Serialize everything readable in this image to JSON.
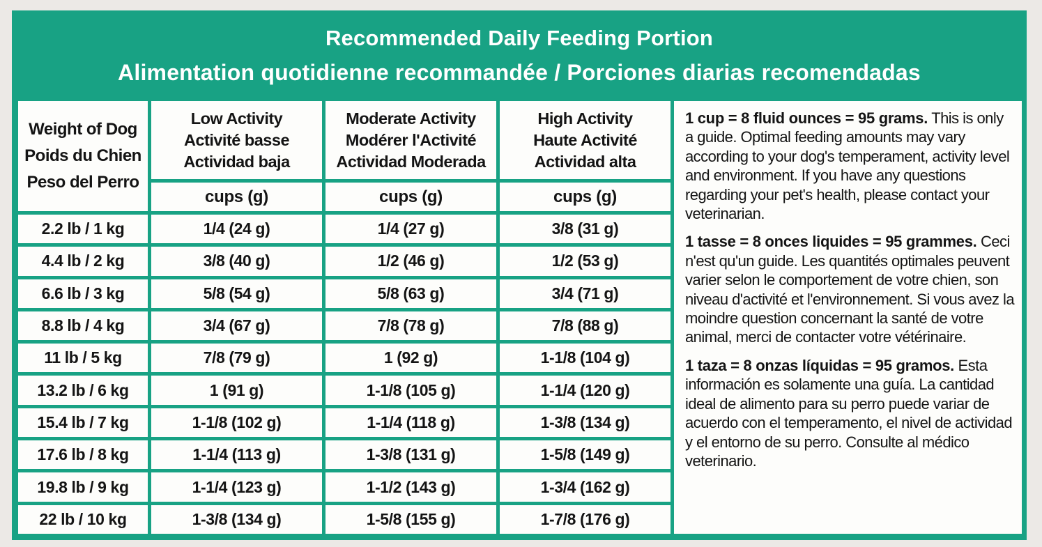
{
  "colors": {
    "teal": "#18a284",
    "cell_bg": "#fdfdfb",
    "page_bg": "#ece9e6",
    "text": "#141414",
    "title_text": "#ffffff"
  },
  "header": {
    "title_en": "Recommended Daily Feeding Portion",
    "title_fr_es": "Alimentation quotidienne recommandée / Porciones diarias recomendadas"
  },
  "chart_data": {
    "type": "table",
    "title": "Recommended Daily Feeding Portion",
    "weight_header": [
      "Weight of Dog",
      "Poids du Chien",
      "Peso del Perro"
    ],
    "activity_columns": [
      {
        "labels": [
          "Low Activity",
          "Activité basse",
          "Actividad baja"
        ],
        "unit": "cups (g)"
      },
      {
        "labels": [
          "Moderate Activity",
          "Modérer l'Activité",
          "Actividad Moderada"
        ],
        "unit": "cups (g)"
      },
      {
        "labels": [
          "High Activity",
          "Haute Activité",
          "Actividad alta"
        ],
        "unit": "cups (g)"
      }
    ],
    "rows": [
      {
        "weight": "2.2 lb / 1 kg",
        "low": "1/4 (24 g)",
        "moderate": "1/4 (27 g)",
        "high": "3/8 (31 g)"
      },
      {
        "weight": "4.4 lb / 2 kg",
        "low": "3/8 (40 g)",
        "moderate": "1/2 (46 g)",
        "high": "1/2 (53 g)"
      },
      {
        "weight": "6.6 lb / 3 kg",
        "low": "5/8 (54 g)",
        "moderate": "5/8 (63 g)",
        "high": "3/4 (71 g)"
      },
      {
        "weight": "8.8 lb / 4 kg",
        "low": "3/4 (67 g)",
        "moderate": "7/8 (78 g)",
        "high": "7/8 (88 g)"
      },
      {
        "weight": "11 lb / 5 kg",
        "low": "7/8 (79 g)",
        "moderate": "1 (92 g)",
        "high": "1-1/8 (104 g)"
      },
      {
        "weight": "13.2 lb / 6 kg",
        "low": "1 (91 g)",
        "moderate": "1-1/8 (105 g)",
        "high": "1-1/4 (120 g)"
      },
      {
        "weight": "15.4 lb / 7 kg",
        "low": "1-1/8 (102 g)",
        "moderate": "1-1/4 (118 g)",
        "high": "1-3/8 (134 g)"
      },
      {
        "weight": "17.6 lb / 8 kg",
        "low": "1-1/4 (113 g)",
        "moderate": "1-3/8 (131 g)",
        "high": "1-5/8 (149 g)"
      },
      {
        "weight": "19.8 lb / 9 kg",
        "low": "1-1/4 (123 g)",
        "moderate": "1-1/2 (143 g)",
        "high": "1-3/4 (162 g)"
      },
      {
        "weight": "22 lb / 10 kg",
        "low": "1-3/8 (134 g)",
        "moderate": "1-5/8 (155 g)",
        "high": "1-7/8 (176 g)"
      }
    ]
  },
  "notes": [
    {
      "lead": "1 cup = 8 fluid ounces = 95 grams.",
      "body": " This is only a guide. Optimal feeding amounts may vary according to your dog's temperament, activity level and environment. If you have any questions regarding your pet's health, please contact your veterinarian."
    },
    {
      "lead": "1 tasse = 8 onces liquides = 95 grammes.",
      "body": " Ceci n'est qu'un guide. Les quantités optimales peuvent varier selon le comportement de votre chien, son niveau d'activité et l'environnement. Si vous avez la moindre question concernant la santé de votre animal, merci de contacter votre vétérinaire."
    },
    {
      "lead": "1 taza = 8 onzas líquidas = 95 gramos.",
      "body": " Esta información es solamente una guía. La cantidad ideal de alimento para su perro puede variar de acuerdo con el temperamento, el nivel de actividad y el entorno de su perro. Consulte al médico veterinario."
    }
  ]
}
